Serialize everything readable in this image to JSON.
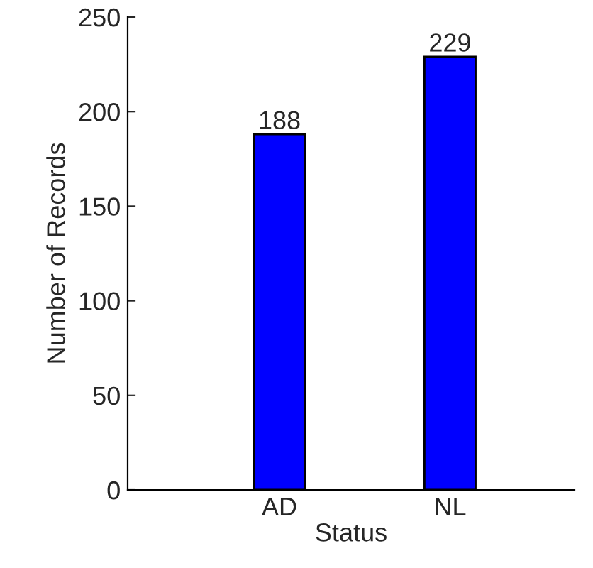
{
  "chart_data": {
    "type": "bar",
    "xlabel": "Status",
    "ylabel": "Number of Records",
    "categories": [
      "AD",
      "NL"
    ],
    "values": [
      188,
      229
    ],
    "color": "#0000ff",
    "ylim": [
      0,
      250
    ],
    "yticks": [
      0,
      50,
      100,
      150,
      200,
      250
    ],
    "data_labels": true,
    "grid": false
  }
}
